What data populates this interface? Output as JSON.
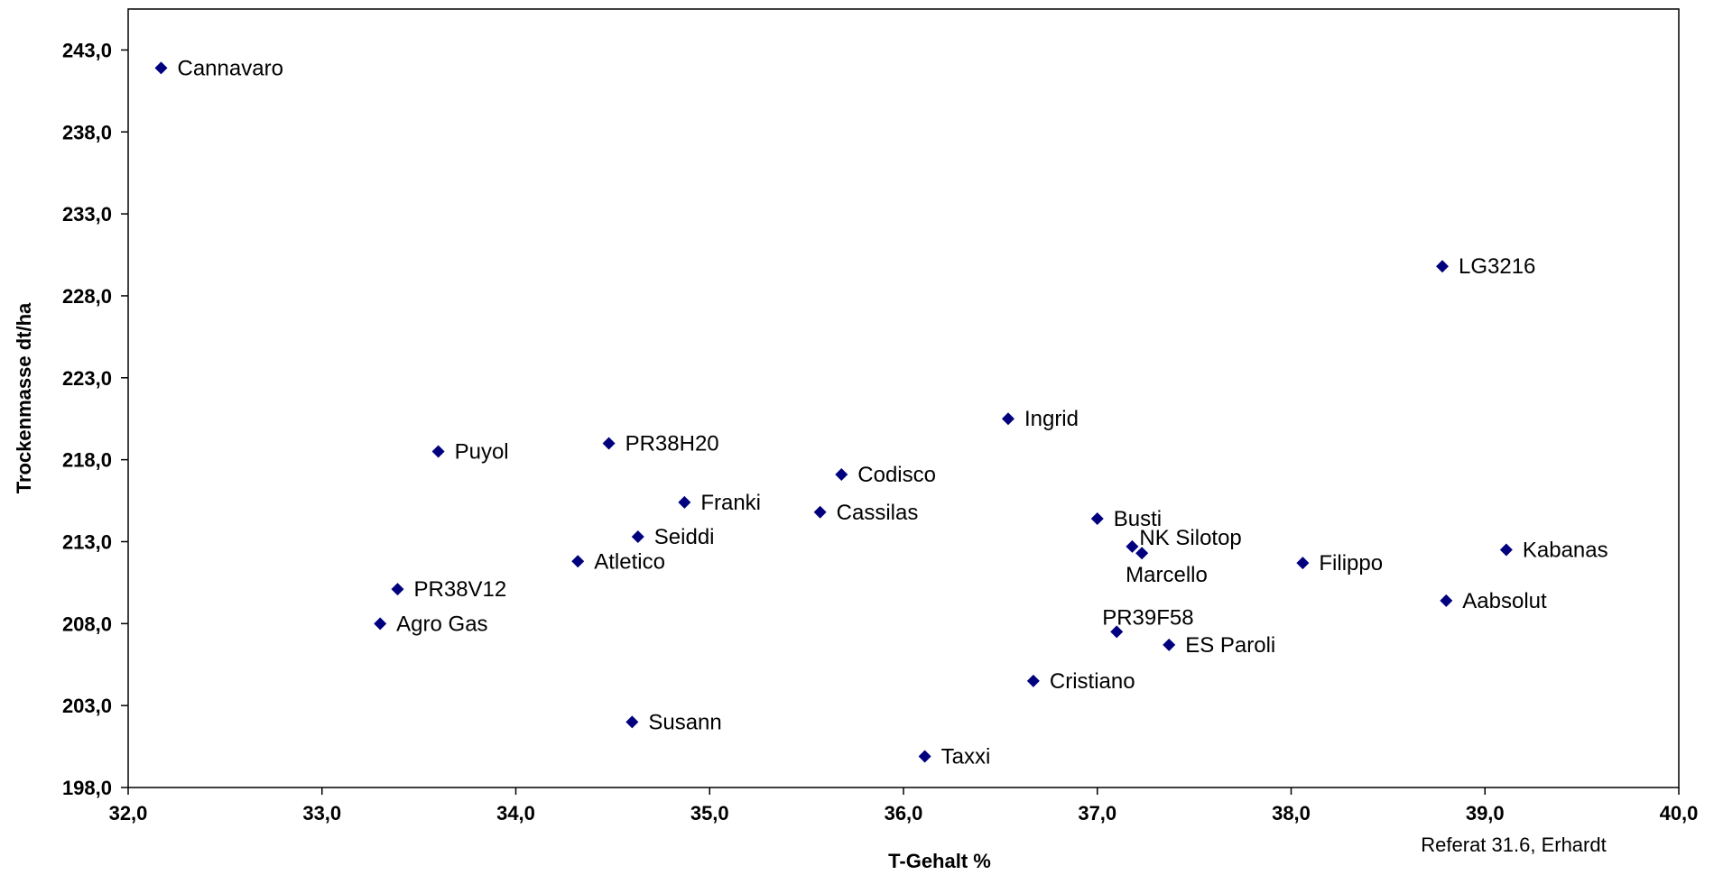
{
  "chart_data": {
    "type": "scatter",
    "xlabel": "T-Gehalt %",
    "ylabel": "Trockenmasse dt/ha",
    "xlim": [
      32.0,
      40.0
    ],
    "ylim": [
      198.0,
      245.5
    ],
    "x_ticks": [
      32.0,
      33.0,
      34.0,
      35.0,
      36.0,
      37.0,
      38.0,
      39.0,
      40.0
    ],
    "y_ticks": [
      198.0,
      203.0,
      208.0,
      213.0,
      218.0,
      223.0,
      228.0,
      233.0,
      238.0,
      243.0
    ],
    "x_tick_labels": [
      "32,0",
      "33,0",
      "34,0",
      "35,0",
      "36,0",
      "37,0",
      "38,0",
      "39,0",
      "40,0"
    ],
    "y_tick_labels": [
      "198,0",
      "203,0",
      "208,0",
      "213,0",
      "218,0",
      "223,0",
      "228,0",
      "233,0",
      "238,0",
      "243,0"
    ],
    "grid": false,
    "marker": "diamond",
    "marker_color": "#00007f",
    "annotation": "Referat 31.6, Erhardt",
    "points": [
      {
        "label": "Cannavaro",
        "x": 32.17,
        "y": 241.9
      },
      {
        "label": "LG3216",
        "x": 38.78,
        "y": 229.8
      },
      {
        "label": "Ingrid",
        "x": 36.54,
        "y": 220.5
      },
      {
        "label": "Puyol",
        "x": 33.6,
        "y": 218.5
      },
      {
        "label": "PR38H20",
        "x": 34.48,
        "y": 219.0
      },
      {
        "label": "Codisco",
        "x": 35.68,
        "y": 217.1
      },
      {
        "label": "Franki",
        "x": 34.87,
        "y": 215.4
      },
      {
        "label": "Cassilas",
        "x": 35.57,
        "y": 214.8
      },
      {
        "label": "Busti",
        "x": 37.0,
        "y": 214.4
      },
      {
        "label": "Seiddi",
        "x": 34.63,
        "y": 213.3
      },
      {
        "label": "NK Silotop",
        "x": 37.18,
        "y": 212.7
      },
      {
        "label": "Marcello",
        "x": 37.23,
        "y": 212.3
      },
      {
        "label": "Kabanas",
        "x": 39.11,
        "y": 212.5
      },
      {
        "label": "Atletico",
        "x": 34.32,
        "y": 211.8
      },
      {
        "label": "Filippo",
        "x": 38.06,
        "y": 211.7
      },
      {
        "label": "PR38V12",
        "x": 33.39,
        "y": 210.1
      },
      {
        "label": "Aabsolut",
        "x": 38.8,
        "y": 209.4
      },
      {
        "label": "Agro Gas",
        "x": 33.3,
        "y": 208.0
      },
      {
        "label": "PR39F58",
        "x": 37.1,
        "y": 207.5
      },
      {
        "label": "ES Paroli",
        "x": 37.37,
        "y": 206.7
      },
      {
        "label": "Cristiano",
        "x": 36.67,
        "y": 204.5
      },
      {
        "label": "Susann",
        "x": 34.6,
        "y": 202.0
      },
      {
        "label": "Taxxi",
        "x": 36.11,
        "y": 199.9
      }
    ]
  }
}
